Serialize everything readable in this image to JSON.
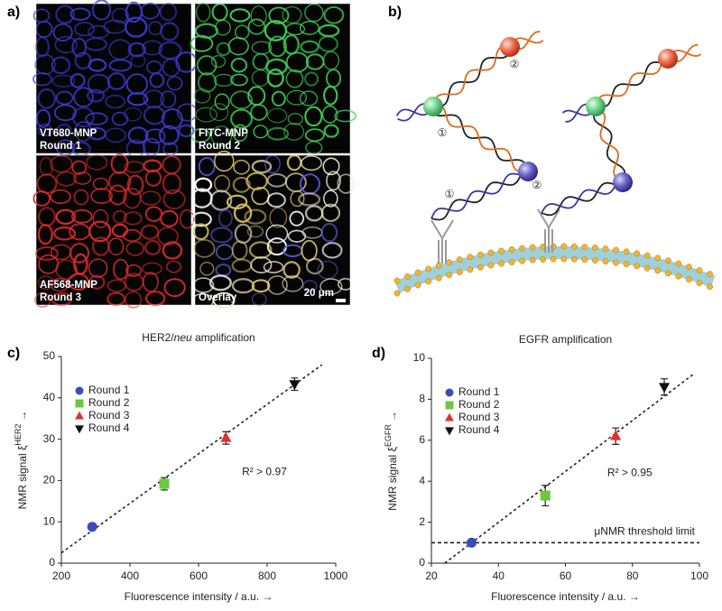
{
  "panel_labels": [
    "a)",
    "b)",
    "c)",
    "d)"
  ],
  "images": [
    {
      "caption": [
        "VT680-MNP",
        "Round 1"
      ],
      "color": "#3b3ad0"
    },
    {
      "caption": [
        "FITC-MNP",
        "Round 2"
      ],
      "color": "#3fcf55"
    },
    {
      "caption": [
        "AF568-MNP",
        "Round 3"
      ],
      "color": "#e02a2a"
    },
    {
      "caption": [
        "Overlay"
      ],
      "color": "#f2e8d0"
    }
  ],
  "scale_bar": "20 μm",
  "diagram": {
    "labels": [
      "①",
      "②",
      "①",
      "②"
    ]
  },
  "chart_data": [
    {
      "type": "scatter",
      "title": [
        "HER2/",
        "neu",
        " amplification"
      ],
      "xlabel": "Fluorescence intensity / a.u. →",
      "ylabel": {
        "text": "NMR signal ξ",
        "sup": "HER2",
        "arrow": "→"
      },
      "xlim": [
        200,
        1000
      ],
      "xticks": [
        200,
        400,
        600,
        800,
        1000
      ],
      "ylim": [
        0,
        50
      ],
      "yticks": [
        0,
        10,
        20,
        30,
        40,
        50
      ],
      "series": [
        {
          "name": "Round 1",
          "marker": "circle",
          "color": "#3a4db5",
          "x": [
            290
          ],
          "values": [
            8.8
          ],
          "errors": [
            0.5
          ]
        },
        {
          "name": "Round 2",
          "marker": "square",
          "color": "#6cc83c",
          "x": [
            500
          ],
          "values": [
            19.2
          ],
          "errors": [
            1.5
          ]
        },
        {
          "name": "Round 3",
          "marker": "triangle",
          "color": "#e2302a",
          "x": [
            680
          ],
          "values": [
            30.3
          ],
          "errors": [
            1.5
          ]
        },
        {
          "name": "Round 4",
          "marker": "triangle-down",
          "color": "#111111",
          "x": [
            880
          ],
          "values": [
            43.3
          ],
          "errors": [
            1.5
          ]
        }
      ],
      "trendline": {
        "x": [
          200,
          960
        ],
        "y": [
          2.5,
          48
        ]
      },
      "annotation": "R² > 0.97"
    },
    {
      "type": "scatter",
      "title": [
        "EGFR amplification"
      ],
      "xlabel": "Fluorescence intensity / a.u. →",
      "ylabel": {
        "text": "NMR signal ξ",
        "sup": "EGFR",
        "arrow": "→"
      },
      "xlim": [
        20,
        100
      ],
      "xticks": [
        20,
        40,
        60,
        80,
        100
      ],
      "ylim": [
        0,
        10
      ],
      "yticks": [
        0,
        2,
        4,
        6,
        8,
        10
      ],
      "series": [
        {
          "name": "Round 1",
          "marker": "circle",
          "color": "#3a4db5",
          "x": [
            32
          ],
          "values": [
            1.0
          ],
          "errors": [
            0.1
          ]
        },
        {
          "name": "Round 2",
          "marker": "square",
          "color": "#6cc83c",
          "x": [
            54
          ],
          "values": [
            3.3
          ],
          "errors": [
            0.5
          ]
        },
        {
          "name": "Round 3",
          "marker": "triangle",
          "color": "#e2302a",
          "x": [
            75
          ],
          "values": [
            6.2
          ],
          "errors": [
            0.4
          ]
        },
        {
          "name": "Round 4",
          "marker": "triangle-down",
          "color": "#111111",
          "x": [
            89.5
          ],
          "values": [
            8.6
          ],
          "errors": [
            0.4
          ]
        }
      ],
      "trendline": {
        "x": [
          24,
          98
        ],
        "y": [
          0,
          9.2
        ]
      },
      "threshold": {
        "value": 1,
        "label": "μNMR threshold limit"
      },
      "annotation": "R² > 0.95"
    }
  ]
}
